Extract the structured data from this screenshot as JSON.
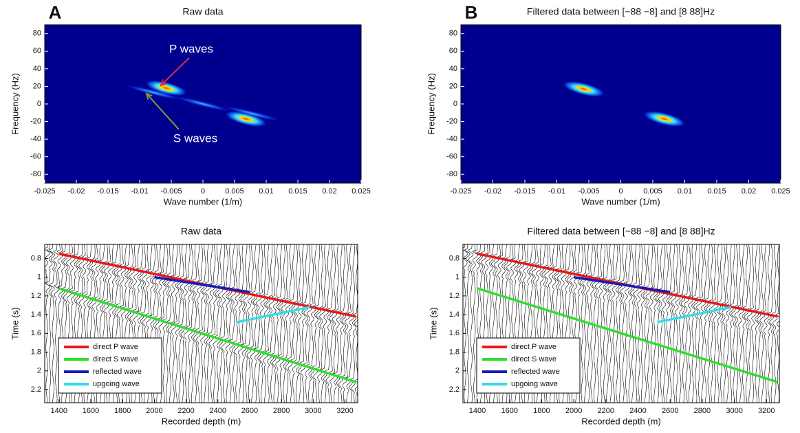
{
  "chart_data": [
    {
      "type": "heatmap",
      "panel_label": "A",
      "title": "Raw data",
      "xlabel": "Wave number (1/m)",
      "ylabel": "Frequency (Hz)",
      "xlim": [
        -0.025,
        0.025
      ],
      "xticks": [
        -0.025,
        -0.02,
        -0.015,
        -0.01,
        -0.005,
        0,
        0.005,
        0.01,
        0.015,
        0.02,
        0.025
      ],
      "ylim": [
        -90,
        90
      ],
      "yticks": [
        -80,
        -60,
        -40,
        -20,
        0,
        20,
        40,
        60,
        80
      ],
      "x": [
        -0.0058,
        -0.0078,
        0,
        0.0068,
        0.0078
      ],
      "values": [
        18,
        13,
        0,
        -17,
        -11
      ],
      "annotations": [
        {
          "text": "P waves",
          "color": "#e0284a"
        },
        {
          "text": "S waves",
          "color": "#8a9a3a"
        }
      ]
    },
    {
      "type": "heatmap",
      "panel_label": "B",
      "title": "Filtered data between [−88 −8] and [8 88]Hz",
      "xlabel": "Wave number (1/m)",
      "ylabel": "Frequency (Hz)",
      "xlim": [
        -0.025,
        0.025
      ],
      "xticks": [
        -0.025,
        -0.02,
        -0.015,
        -0.01,
        -0.005,
        0,
        0.005,
        0.01,
        0.015,
        0.02,
        0.025
      ],
      "ylim": [
        -90,
        90
      ],
      "yticks": [
        -80,
        -60,
        -40,
        -20,
        0,
        20,
        40,
        60,
        80
      ],
      "x": [
        -0.0058,
        0.0068
      ],
      "values": [
        17,
        -17
      ]
    },
    {
      "type": "line",
      "title": "Raw data",
      "xlabel": "Recorded depth (m)",
      "ylabel": "Time (s)",
      "xlim": [
        1310,
        3280
      ],
      "xticks": [
        1400,
        1600,
        1800,
        2000,
        2200,
        2400,
        2600,
        2800,
        3000,
        3200
      ],
      "ylim": [
        0.65,
        2.34
      ],
      "yticks": [
        0.8,
        1,
        1.2,
        1.4,
        1.6,
        1.8,
        2,
        2.2
      ],
      "y_inverted": true,
      "legend": "lower left",
      "series": [
        {
          "name": "direct P wave",
          "color": "#e8191b",
          "x": [
            1400,
            3270
          ],
          "values": [
            0.75,
            1.42
          ]
        },
        {
          "name": "direct S wave",
          "color": "#2ee02e",
          "x": [
            1400,
            3270
          ],
          "values": [
            1.12,
            2.12
          ]
        },
        {
          "name": "reflected wave",
          "color": "#1a1ab8",
          "x": [
            2000,
            2600
          ],
          "values": [
            1.0,
            1.16
          ]
        },
        {
          "name": "upgoing wave",
          "color": "#33dde8",
          "x": [
            2520,
            2980
          ],
          "values": [
            1.48,
            1.32
          ]
        }
      ]
    },
    {
      "type": "line",
      "title": "Filtered data between [−88 −8] and [8 88]Hz",
      "xlabel": "Recorded depth (m)",
      "ylabel": "Time (s)",
      "xlim": [
        1310,
        3280
      ],
      "xticks": [
        1400,
        1600,
        1800,
        2000,
        2200,
        2400,
        2600,
        2800,
        3000,
        3200
      ],
      "ylim": [
        0.65,
        2.34
      ],
      "yticks": [
        0.8,
        1,
        1.2,
        1.4,
        1.6,
        1.8,
        2,
        2.2
      ],
      "y_inverted": true,
      "legend": "lower left",
      "series": [
        {
          "name": "direct P wave",
          "color": "#e8191b",
          "x": [
            1400,
            3270
          ],
          "values": [
            0.75,
            1.42
          ]
        },
        {
          "name": "direct S wave",
          "color": "#2ee02e",
          "x": [
            1400,
            3270
          ],
          "values": [
            1.12,
            2.12
          ]
        },
        {
          "name": "reflected wave",
          "color": "#1a1ab8",
          "x": [
            2000,
            2600
          ],
          "values": [
            1.0,
            1.16
          ]
        },
        {
          "name": "upgoing wave",
          "color": "#33dde8",
          "x": [
            2520,
            2980
          ],
          "values": [
            1.48,
            1.32
          ]
        }
      ]
    }
  ]
}
